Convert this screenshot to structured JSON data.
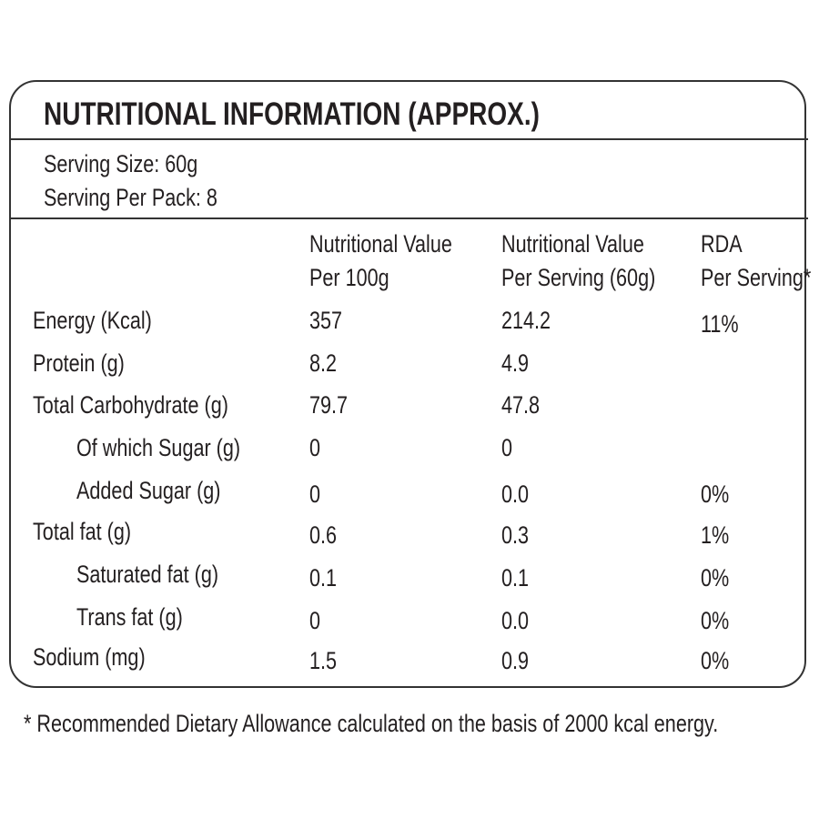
{
  "title": "NUTRITIONAL INFORMATION (APPROX.)",
  "serving": [
    "Serving Size: 60g",
    "Serving Per Pack: 8"
  ],
  "table": {
    "headers": [
      [
        "Nutritional Value",
        "Per 100g"
      ],
      [
        "Nutritional Value",
        "Per Serving (60g)"
      ],
      [
        "RDA",
        "Per Serving*"
      ]
    ],
    "rows": [
      {
        "label": "Energy (Kcal)",
        "per_100g": "357",
        "per_serving": "214.2",
        "rda": "11%"
      },
      {
        "label": "Protein (g)",
        "per_100g": "8.2",
        "per_serving": "4.9"
      },
      {
        "label": "Total Carbohydrate (g)",
        "per_100g": "79.7",
        "per_serving": "47.8"
      },
      {
        "label": "Of which Sugar (g)",
        "per_100g": "0",
        "per_serving": "0",
        "indent": true
      },
      {
        "label": "Added Sugar (g)",
        "per_100g": "0",
        "per_serving": "0.0",
        "rda": "0%",
        "indent": true
      },
      {
        "label": "Total fat (g)",
        "per_100g": "0.6",
        "per_serving": "0.3",
        "rda": "1%"
      },
      {
        "label": "Saturated fat (g)",
        "per_100g": "0.1",
        "per_serving": "0.1",
        "rda": "0%",
        "indent": true
      },
      {
        "label": "Trans fat (g)",
        "per_100g": "0",
        "per_serving": "0.0",
        "rda": "0%",
        "indent": true
      },
      {
        "label": "Sodium (mg)",
        "per_100g": "1.5",
        "per_serving": "0.9",
        "rda": "0%"
      }
    ]
  },
  "footnote": "* Recommended Dietary Allowance calculated on the basis of 2000 kcal energy."
}
